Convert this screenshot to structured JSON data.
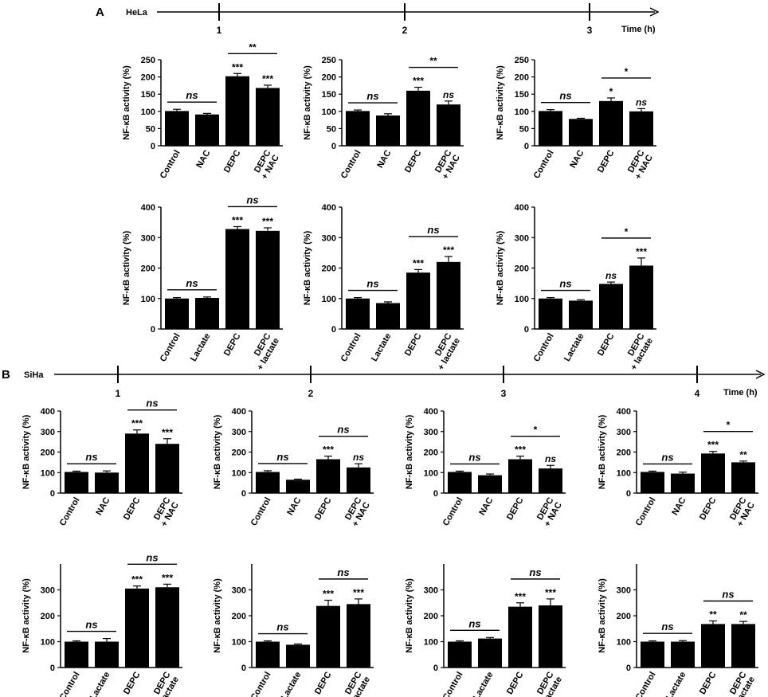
{
  "figure": {
    "panels": [
      {
        "letter": "A",
        "cell_line": "HeLa",
        "time_label": "Time (h)",
        "timepoints": [
          "1",
          "2",
          "3"
        ]
      },
      {
        "letter": "B",
        "cell_line": "SiHa",
        "time_label": "Time (h)",
        "timepoints": [
          "1",
          "2",
          "3",
          "4"
        ]
      }
    ]
  },
  "chart_data": [
    {
      "type": "bar",
      "panel": "A",
      "timepoint": "1",
      "ylabel": "NF-κB activity (%)",
      "ylim": [
        0,
        250
      ],
      "yticks": [
        0,
        50,
        100,
        150,
        200,
        250
      ],
      "categories": [
        [
          "Control"
        ],
        [
          "NAC"
        ],
        [
          "DEPC"
        ],
        [
          "DEPC",
          "+ NAC"
        ]
      ],
      "values": [
        101,
        91,
        202,
        168
      ],
      "errors": [
        5,
        3,
        8,
        8
      ],
      "bar_labels": [
        "",
        "",
        "***",
        "***"
      ],
      "brackets": [
        {
          "from": 0,
          "to": 1,
          "label": "ns"
        },
        {
          "from": 2,
          "to": 3,
          "label": "**"
        }
      ]
    },
    {
      "type": "bar",
      "panel": "A",
      "timepoint": "2",
      "ylabel": "NF-κB activity (%)",
      "ylim": [
        0,
        250
      ],
      "yticks": [
        0,
        50,
        100,
        150,
        200,
        250
      ],
      "categories": [
        [
          "Control"
        ],
        [
          "NAC"
        ],
        [
          "DEPC"
        ],
        [
          "DEPC",
          "+ NAC"
        ]
      ],
      "values": [
        101,
        88,
        160,
        120
      ],
      "errors": [
        3,
        5,
        10,
        10
      ],
      "bar_labels": [
        "",
        "",
        "***",
        "ns"
      ],
      "brackets": [
        {
          "from": 0,
          "to": 1,
          "label": "ns"
        },
        {
          "from": 2,
          "to": 3,
          "label": "**"
        }
      ]
    },
    {
      "type": "bar",
      "panel": "A",
      "timepoint": "3",
      "ylabel": "NF-κB activity (%)",
      "ylim": [
        0,
        250
      ],
      "yticks": [
        0,
        50,
        100,
        150,
        200,
        250
      ],
      "categories": [
        [
          "Control"
        ],
        [
          "NAC"
        ],
        [
          "DEPC"
        ],
        [
          "DEPC",
          "+ NAC"
        ]
      ],
      "values": [
        101,
        78,
        130,
        100
      ],
      "errors": [
        4,
        2,
        9,
        8
      ],
      "bar_labels": [
        "",
        "",
        "*",
        "ns"
      ],
      "brackets": [
        {
          "from": 0,
          "to": 1,
          "label": "ns"
        },
        {
          "from": 2,
          "to": 3,
          "label": "*"
        }
      ]
    },
    {
      "type": "bar",
      "panel": "A",
      "timepoint": "1",
      "ylabel": "NF-κB activity (%)",
      "ylim": [
        0,
        400
      ],
      "yticks": [
        0,
        100,
        200,
        300,
        400
      ],
      "categories": [
        [
          "Control"
        ],
        [
          "Lactate"
        ],
        [
          "DEPC"
        ],
        [
          "DEPC",
          "+ lactate"
        ]
      ],
      "values": [
        100,
        102,
        328,
        322
      ],
      "errors": [
        3,
        3,
        8,
        10
      ],
      "bar_labels": [
        "",
        "",
        "***",
        "***"
      ],
      "brackets": [
        {
          "from": 0,
          "to": 1,
          "label": "ns"
        },
        {
          "from": 2,
          "to": 3,
          "label": "ns"
        }
      ]
    },
    {
      "type": "bar",
      "panel": "A",
      "timepoint": "2",
      "ylabel": "NF-κB activity (%)",
      "ylim": [
        0,
        400
      ],
      "yticks": [
        0,
        100,
        200,
        300,
        400
      ],
      "categories": [
        [
          "Control"
        ],
        [
          "Lactate"
        ],
        [
          "DEPC"
        ],
        [
          "DEPC",
          "+ lactate"
        ]
      ],
      "values": [
        100,
        85,
        185,
        220
      ],
      "errors": [
        3,
        4,
        10,
        18
      ],
      "bar_labels": [
        "",
        "",
        "***",
        "***"
      ],
      "brackets": [
        {
          "from": 0,
          "to": 1,
          "label": "ns"
        },
        {
          "from": 2,
          "to": 3,
          "label": "ns"
        }
      ]
    },
    {
      "type": "bar",
      "panel": "A",
      "timepoint": "3",
      "ylabel": "NF-κB activity (%)",
      "ylim": [
        0,
        400
      ],
      "yticks": [
        0,
        100,
        200,
        300,
        400
      ],
      "categories": [
        [
          "Control"
        ],
        [
          "Lactate"
        ],
        [
          "DEPC"
        ],
        [
          "DEPC",
          "+ lactate"
        ]
      ],
      "values": [
        100,
        93,
        148,
        208
      ],
      "errors": [
        3,
        3,
        6,
        25
      ],
      "bar_labels": [
        "",
        "",
        "ns",
        "***"
      ],
      "brackets": [
        {
          "from": 0,
          "to": 1,
          "label": "ns"
        },
        {
          "from": 2,
          "to": 3,
          "label": "*"
        }
      ]
    },
    {
      "type": "bar",
      "panel": "B",
      "timepoint": "1",
      "ylabel": "NF-κB activity (%)",
      "ylim": [
        0,
        400
      ],
      "yticks": [
        0,
        100,
        200,
        300,
        400
      ],
      "categories": [
        [
          "Control"
        ],
        [
          "NAC"
        ],
        [
          "DEPC"
        ],
        [
          "DEPC",
          "+ NAC"
        ]
      ],
      "values": [
        103,
        100,
        290,
        240
      ],
      "errors": [
        4,
        8,
        18,
        25
      ],
      "bar_labels": [
        "",
        "",
        "***",
        "***"
      ],
      "brackets": [
        {
          "from": 0,
          "to": 1,
          "label": "ns"
        },
        {
          "from": 2,
          "to": 3,
          "label": "ns"
        }
      ]
    },
    {
      "type": "bar",
      "panel": "B",
      "timepoint": "2",
      "ylabel": "NF-κB activity (%)",
      "ylim": [
        0,
        400
      ],
      "yticks": [
        0,
        100,
        200,
        300,
        400
      ],
      "categories": [
        [
          "Control"
        ],
        [
          "NAC"
        ],
        [
          "DEPC"
        ],
        [
          "DEPC",
          "+ NAC"
        ]
      ],
      "values": [
        103,
        65,
        165,
        125
      ],
      "errors": [
        6,
        3,
        15,
        18
      ],
      "bar_labels": [
        "",
        "",
        "***",
        "ns"
      ],
      "brackets": [
        {
          "from": 0,
          "to": 1,
          "label": "ns"
        },
        {
          "from": 2,
          "to": 3,
          "label": "ns"
        }
      ]
    },
    {
      "type": "bar",
      "panel": "B",
      "timepoint": "3",
      "ylabel": "NF-κB activity (%)",
      "ylim": [
        0,
        400
      ],
      "yticks": [
        0,
        100,
        200,
        300,
        400
      ],
      "categories": [
        [
          "Control"
        ],
        [
          "NAC"
        ],
        [
          "DEPC"
        ],
        [
          "DEPC",
          "+ NAC"
        ]
      ],
      "values": [
        103,
        87,
        165,
        120
      ],
      "errors": [
        4,
        6,
        15,
        15
      ],
      "bar_labels": [
        "",
        "",
        "***",
        "ns"
      ],
      "brackets": [
        {
          "from": 0,
          "to": 1,
          "label": "ns"
        },
        {
          "from": 2,
          "to": 3,
          "label": "*"
        }
      ]
    },
    {
      "type": "bar",
      "panel": "B",
      "timepoint": "4",
      "ylabel": "NF-κB activity (%)",
      "ylim": [
        0,
        400
      ],
      "yticks": [
        0,
        100,
        200,
        300,
        400
      ],
      "categories": [
        [
          "Control"
        ],
        [
          "NAC"
        ],
        [
          "DEPC"
        ],
        [
          "DEPC",
          "+ NAC"
        ]
      ],
      "values": [
        103,
        95,
        193,
        150
      ],
      "errors": [
        4,
        7,
        10,
        6
      ],
      "bar_labels": [
        "",
        "",
        "***",
        "**"
      ],
      "brackets": [
        {
          "from": 0,
          "to": 1,
          "label": "ns"
        },
        {
          "from": 2,
          "to": 3,
          "label": "*"
        }
      ]
    },
    {
      "type": "bar",
      "panel": "B",
      "timepoint": "1",
      "ylabel": "NF-κB activity (%)",
      "ylim": [
        0,
        400
      ],
      "yticks": [
        0,
        100,
        200,
        300
      ],
      "categories": [
        [
          "Control"
        ],
        [
          "Lactate"
        ],
        [
          "DEPC"
        ],
        [
          "DEPC",
          "+ lactate"
        ]
      ],
      "values": [
        100,
        100,
        305,
        310
      ],
      "errors": [
        3,
        12,
        10,
        12
      ],
      "bar_labels": [
        "",
        "",
        "***",
        "***"
      ],
      "brackets": [
        {
          "from": 0,
          "to": 1,
          "label": "ns"
        },
        {
          "from": 2,
          "to": 3,
          "label": "ns"
        }
      ]
    },
    {
      "type": "bar",
      "panel": "B",
      "timepoint": "2",
      "ylabel": "NF-κB activity (%)",
      "ylim": [
        0,
        400
      ],
      "yticks": [
        0,
        100,
        200,
        300
      ],
      "categories": [
        [
          "Control"
        ],
        [
          "Lactate"
        ],
        [
          "DEPC"
        ],
        [
          "DEPC",
          "+ lactate"
        ]
      ],
      "values": [
        100,
        88,
        238,
        245
      ],
      "errors": [
        3,
        3,
        22,
        20
      ],
      "bar_labels": [
        "",
        "",
        "***",
        "***"
      ],
      "brackets": [
        {
          "from": 0,
          "to": 1,
          "label": "ns"
        },
        {
          "from": 2,
          "to": 3,
          "label": "ns"
        }
      ]
    },
    {
      "type": "bar",
      "panel": "B",
      "timepoint": "3",
      "ylabel": "NF-κB activity (%)",
      "ylim": [
        0,
        400
      ],
      "yticks": [
        0,
        100,
        200,
        300
      ],
      "categories": [
        [
          "Control"
        ],
        [
          "Lactate"
        ],
        [
          "DEPC"
        ],
        [
          "DEPC",
          "+ lactate"
        ]
      ],
      "values": [
        100,
        112,
        235,
        240
      ],
      "errors": [
        3,
        4,
        15,
        25
      ],
      "bar_labels": [
        "",
        "",
        "***",
        "***"
      ],
      "brackets": [
        {
          "from": 0,
          "to": 1,
          "label": "ns"
        },
        {
          "from": 2,
          "to": 3,
          "label": "ns"
        }
      ]
    },
    {
      "type": "bar",
      "panel": "B",
      "timepoint": "4",
      "ylabel": "NF-κB activity (%)",
      "ylim": [
        0,
        400
      ],
      "yticks": [
        0,
        100,
        200,
        300
      ],
      "categories": [
        [
          "Control"
        ],
        [
          "Lactate"
        ],
        [
          "DEPC"
        ],
        [
          "DEPC",
          "+ lactate"
        ]
      ],
      "values": [
        100,
        100,
        168,
        168
      ],
      "errors": [
        3,
        4,
        12,
        10
      ],
      "bar_labels": [
        "",
        "",
        "**",
        "**"
      ],
      "brackets": [
        {
          "from": 0,
          "to": 1,
          "label": "ns"
        },
        {
          "from": 2,
          "to": 3,
          "label": "ns"
        }
      ]
    }
  ]
}
